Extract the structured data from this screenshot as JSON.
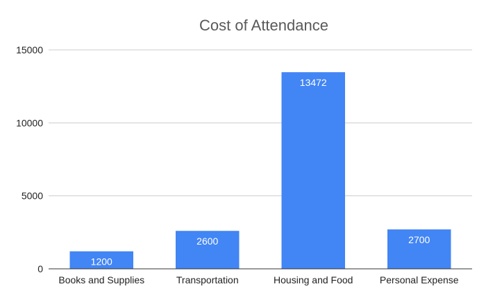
{
  "chart_data": {
    "type": "bar",
    "title": "Cost of Attendance",
    "xlabel": "",
    "ylabel": "",
    "categories": [
      "Books and Supplies",
      "Transportation",
      "Housing and Food",
      "Personal Expense"
    ],
    "series": [
      {
        "values": [
          1200,
          2600,
          13472,
          2700
        ],
        "color": "#4285f4"
      }
    ],
    "data_labels": [
      "1200",
      "2600",
      "13472",
      "2700"
    ],
    "ylim": [
      0,
      15000
    ],
    "yticks": [
      0,
      5000,
      10000,
      15000
    ],
    "ytick_labels": [
      "0",
      "5000",
      "10000",
      "15000"
    ],
    "grid": true,
    "legend": "none"
  }
}
